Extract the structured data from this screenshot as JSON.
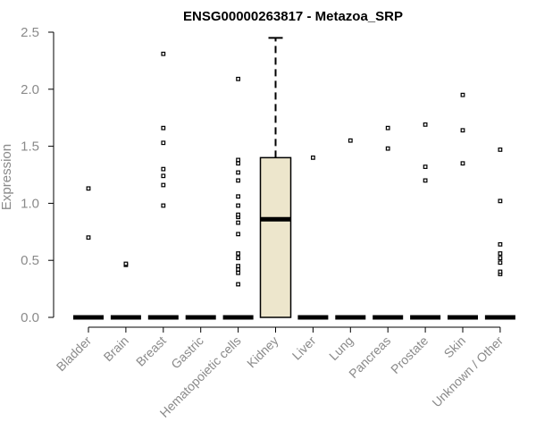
{
  "chart_data": {
    "type": "boxplot",
    "title": "ENSG00000263817 - Metazoa_SRP",
    "xlabel": "",
    "ylabel": "Expression",
    "ylim": [
      0,
      2.5
    ],
    "yticks": [
      "0.0",
      "0.5",
      "1.0",
      "1.5",
      "2.0",
      "2.5"
    ],
    "grid": false,
    "box_fill": "#ede6cc",
    "categories": [
      {
        "name": "Bladder",
        "median": 0,
        "q1": 0,
        "q3": 0,
        "whisker_low": 0,
        "whisker_high": 0,
        "boxed": false,
        "outliers": [
          0.7,
          1.13
        ]
      },
      {
        "name": "Brain",
        "median": 0,
        "q1": 0,
        "q3": 0,
        "whisker_low": 0,
        "whisker_high": 0,
        "boxed": false,
        "outliers": [
          0.46,
          0.47
        ]
      },
      {
        "name": "Breast",
        "median": 0,
        "q1": 0,
        "q3": 0,
        "whisker_low": 0,
        "whisker_high": 0,
        "boxed": false,
        "outliers": [
          0.98,
          1.16,
          1.24,
          1.3,
          1.53,
          1.66,
          2.31
        ]
      },
      {
        "name": "Gastric",
        "median": 0,
        "q1": 0,
        "q3": 0,
        "whisker_low": 0,
        "whisker_high": 0,
        "boxed": false,
        "outliers": []
      },
      {
        "name": "Hematopoietic cells",
        "median": 0,
        "q1": 0,
        "q3": 0,
        "whisker_low": 0,
        "whisker_high": 0,
        "boxed": false,
        "outliers": [
          0.29,
          0.39,
          0.42,
          0.45,
          0.52,
          0.56,
          0.73,
          0.83,
          0.88,
          0.9,
          0.98,
          1.06,
          1.2,
          1.27,
          1.35,
          1.38,
          2.09
        ]
      },
      {
        "name": "Kidney",
        "median": 0.86,
        "q1": 0,
        "q3": 1.4,
        "whisker_low": 0,
        "whisker_high": 2.45,
        "boxed": true,
        "outliers": []
      },
      {
        "name": "Liver",
        "median": 0,
        "q1": 0,
        "q3": 0,
        "whisker_low": 0,
        "whisker_high": 0,
        "boxed": false,
        "outliers": [
          1.4
        ]
      },
      {
        "name": "Lung",
        "median": 0,
        "q1": 0,
        "q3": 0,
        "whisker_low": 0,
        "whisker_high": 0,
        "boxed": false,
        "outliers": [
          1.55
        ]
      },
      {
        "name": "Pancreas",
        "median": 0,
        "q1": 0,
        "q3": 0,
        "whisker_low": 0,
        "whisker_high": 0,
        "boxed": false,
        "outliers": [
          1.48,
          1.66
        ]
      },
      {
        "name": "Prostate",
        "median": 0,
        "q1": 0,
        "q3": 0,
        "whisker_low": 0,
        "whisker_high": 0,
        "boxed": false,
        "outliers": [
          1.2,
          1.32,
          1.69
        ]
      },
      {
        "name": "Skin",
        "median": 0,
        "q1": 0,
        "q3": 0,
        "whisker_low": 0,
        "whisker_high": 0,
        "boxed": false,
        "outliers": [
          1.35,
          1.64,
          1.95
        ]
      },
      {
        "name": "Unknown / Other",
        "median": 0,
        "q1": 0,
        "q3": 0,
        "whisker_low": 0,
        "whisker_high": 0,
        "boxed": false,
        "outliers": [
          0.38,
          0.4,
          0.48,
          0.52,
          0.56,
          0.64,
          1.02,
          1.47
        ]
      }
    ]
  }
}
